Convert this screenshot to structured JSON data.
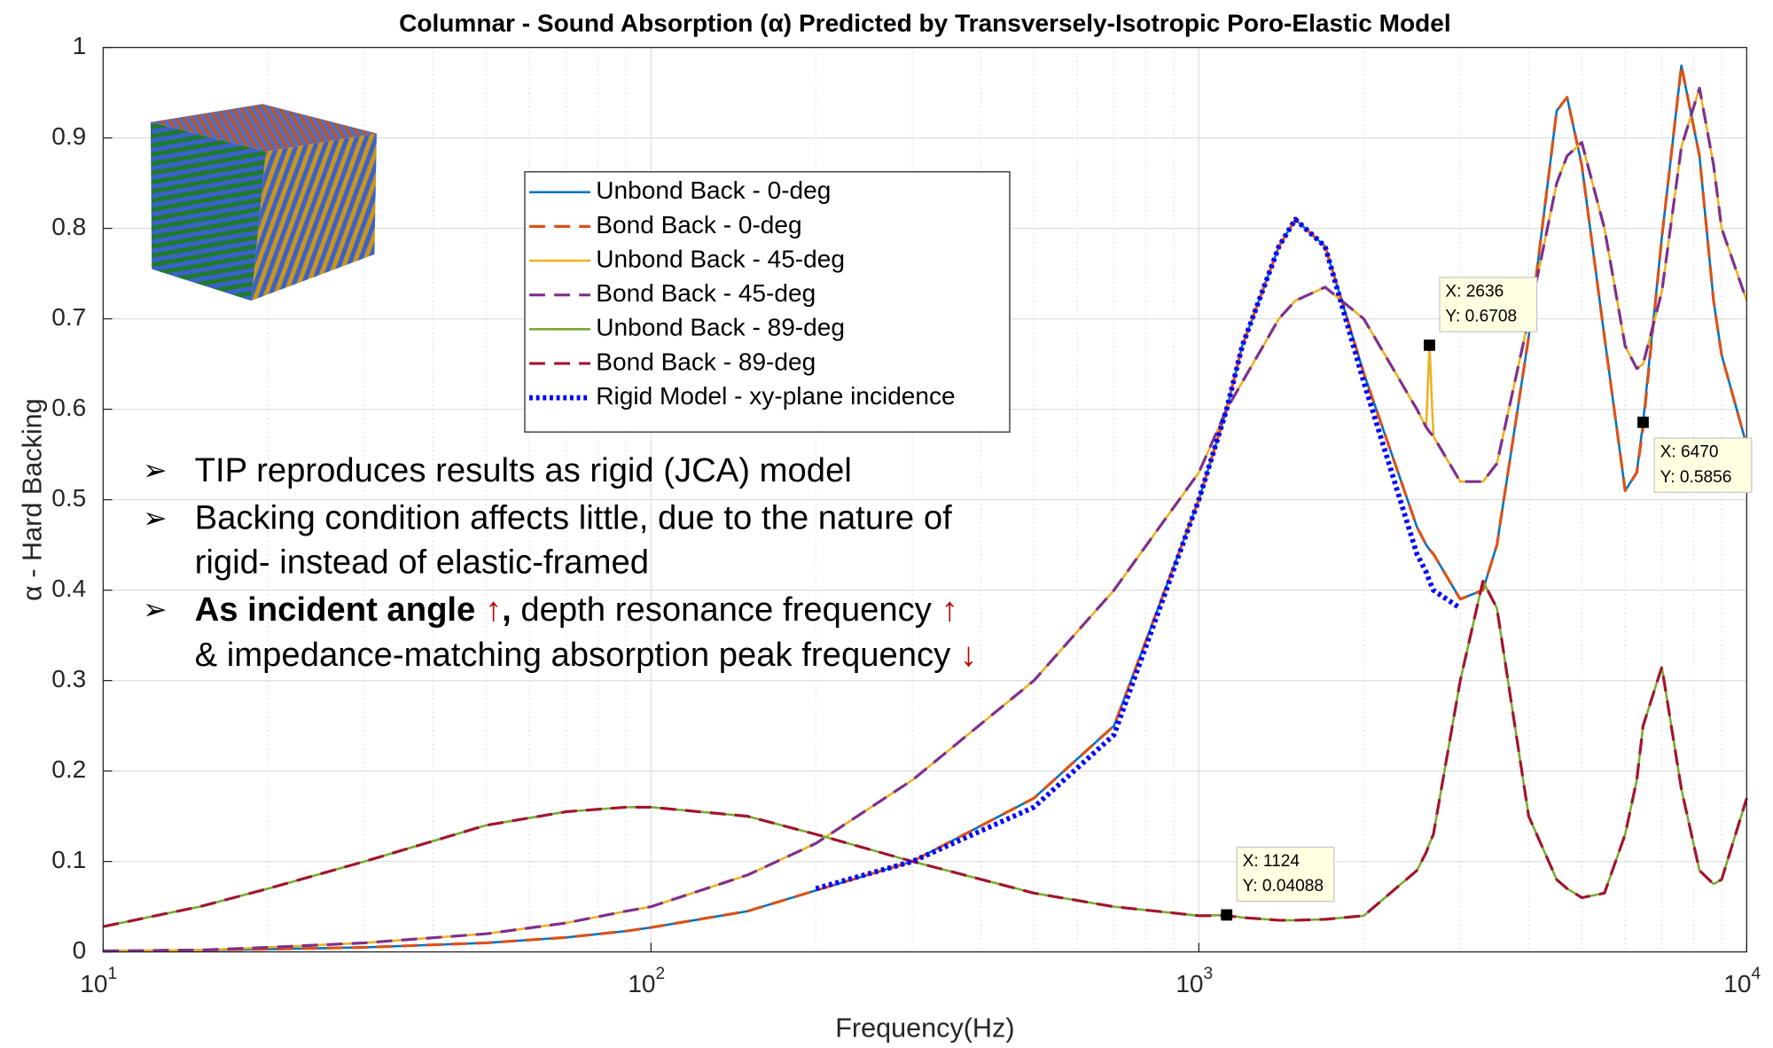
{
  "chart_data": {
    "type": "line",
    "title": "Columnar - Sound Absorption (α) Predicted by Transversely-Isotropic Poro-Elastic Model",
    "xlabel": "Frequency(Hz)",
    "ylabel": "α - Hard Backing",
    "xscale": "log",
    "grid": true,
    "minor_grid": true,
    "legend_loc": "upper center",
    "xlim": [
      10,
      10000
    ],
    "ylim": [
      0,
      1
    ],
    "xticks": [
      {
        "value": 10,
        "label": "10",
        "exponent": "1"
      },
      {
        "value": 100,
        "label": "10",
        "exponent": "2"
      },
      {
        "value": 1000,
        "label": "10",
        "exponent": "3"
      },
      {
        "value": 10000,
        "label": "10",
        "exponent": "4"
      }
    ],
    "yticks": [
      0,
      0.1,
      0.2,
      0.3,
      0.4,
      0.5,
      0.6,
      0.7,
      0.8,
      0.9,
      1
    ],
    "x": [
      10,
      15,
      20,
      30,
      50,
      70,
      90,
      100,
      150,
      200,
      300,
      500,
      700,
      1000,
      1124,
      1200,
      1400,
      1500,
      1700,
      2000,
      2500,
      2600,
      2636,
      2680,
      3000,
      3300,
      3500,
      4000,
      4500,
      4700,
      5000,
      5500,
      6000,
      6300,
      6470,
      7000,
      7600,
      8200,
      8700,
      9000,
      10000
    ],
    "series": [
      {
        "name": "Unbond Back - 0-deg",
        "color": "#0072bd",
        "linestyle": "solid",
        "values": [
          0.001,
          0.002,
          0.003,
          0.005,
          0.01,
          0.016,
          0.023,
          0.027,
          0.045,
          0.068,
          0.1,
          0.17,
          0.25,
          0.5,
          0.6,
          0.67,
          0.78,
          0.81,
          0.78,
          0.64,
          0.47,
          0.45,
          0.445,
          0.44,
          0.39,
          0.4,
          0.45,
          0.68,
          0.93,
          0.945,
          0.87,
          0.68,
          0.51,
          0.53,
          0.5856,
          0.79,
          0.98,
          0.88,
          0.72,
          0.66,
          0.56
        ]
      },
      {
        "name": "Bond Back - 0-deg",
        "color": "#d95319",
        "linestyle": "dashed",
        "values": [
          0.001,
          0.002,
          0.003,
          0.005,
          0.01,
          0.016,
          0.023,
          0.027,
          0.045,
          0.068,
          0.1,
          0.17,
          0.25,
          0.5,
          0.6,
          0.67,
          0.78,
          0.81,
          0.78,
          0.64,
          0.47,
          0.45,
          0.445,
          0.44,
          0.39,
          0.4,
          0.45,
          0.68,
          0.93,
          0.945,
          0.87,
          0.68,
          0.51,
          0.53,
          0.58,
          0.79,
          0.98,
          0.88,
          0.72,
          0.66,
          0.56
        ]
      },
      {
        "name": "Unbond Back - 45-deg",
        "color": "#edb120",
        "linestyle": "solid",
        "values": [
          0.001,
          0.002,
          0.005,
          0.01,
          0.02,
          0.032,
          0.045,
          0.05,
          0.085,
          0.12,
          0.19,
          0.3,
          0.4,
          0.53,
          0.6,
          0.63,
          0.7,
          0.72,
          0.735,
          0.7,
          0.6,
          0.58,
          0.6708,
          0.57,
          0.52,
          0.52,
          0.54,
          0.7,
          0.85,
          0.88,
          0.895,
          0.8,
          0.67,
          0.645,
          0.65,
          0.73,
          0.89,
          0.955,
          0.87,
          0.8,
          0.72
        ]
      },
      {
        "name": "Bond Back - 45-deg",
        "color": "#7e2f8e",
        "linestyle": "dashed",
        "values": [
          0.001,
          0.002,
          0.005,
          0.01,
          0.02,
          0.032,
          0.045,
          0.05,
          0.085,
          0.12,
          0.19,
          0.3,
          0.4,
          0.53,
          0.6,
          0.63,
          0.7,
          0.72,
          0.735,
          0.7,
          0.6,
          0.58,
          0.575,
          0.57,
          0.52,
          0.52,
          0.54,
          0.7,
          0.85,
          0.88,
          0.895,
          0.8,
          0.67,
          0.645,
          0.65,
          0.73,
          0.89,
          0.955,
          0.87,
          0.8,
          0.72
        ]
      },
      {
        "name": "Unbond Back - 89-deg",
        "color": "#77ac30",
        "linestyle": "solid",
        "values": [
          0.028,
          0.05,
          0.07,
          0.1,
          0.14,
          0.155,
          0.16,
          0.16,
          0.15,
          0.13,
          0.1,
          0.065,
          0.05,
          0.04,
          0.04088,
          0.038,
          0.035,
          0.035,
          0.036,
          0.04,
          0.09,
          0.11,
          0.12,
          0.13,
          0.3,
          0.41,
          0.38,
          0.15,
          0.08,
          0.07,
          0.06,
          0.065,
          0.13,
          0.19,
          0.25,
          0.315,
          0.18,
          0.09,
          0.075,
          0.08,
          0.17
        ]
      },
      {
        "name": "Bond Back - 89-deg",
        "color": "#a2142f",
        "linestyle": "dashed",
        "values": [
          0.028,
          0.05,
          0.07,
          0.1,
          0.14,
          0.155,
          0.16,
          0.16,
          0.15,
          0.13,
          0.1,
          0.065,
          0.05,
          0.04,
          0.04,
          0.038,
          0.035,
          0.035,
          0.036,
          0.04,
          0.09,
          0.11,
          0.12,
          0.13,
          0.3,
          0.41,
          0.38,
          0.15,
          0.08,
          0.07,
          0.06,
          0.065,
          0.13,
          0.19,
          0.25,
          0.315,
          0.18,
          0.09,
          0.075,
          0.08,
          0.17
        ]
      },
      {
        "name": "Rigid Model - xy-plane incidence",
        "color": "#0000ff",
        "linestyle": "dotted",
        "values": [
          null,
          null,
          null,
          null,
          null,
          null,
          null,
          null,
          null,
          0.07,
          0.1,
          0.16,
          0.24,
          0.5,
          0.6,
          0.67,
          0.78,
          0.81,
          0.78,
          0.63,
          0.44,
          0.42,
          0.41,
          0.4,
          0.38,
          null,
          null,
          null,
          null,
          null,
          null,
          null,
          null,
          null,
          null,
          null,
          null,
          null,
          null,
          null,
          null
        ]
      }
    ],
    "datatips": [
      {
        "x": 2636,
        "y": 0.6708,
        "text_x": "X: 2636",
        "text_y": "Y: 0.6708"
      },
      {
        "x": 6470,
        "y": 0.5856,
        "text_x": "X: 6470",
        "text_y": "Y: 0.5856"
      },
      {
        "x": 1124,
        "y": 0.04088,
        "text_x": "X: 1124",
        "text_y": "Y: 0.04088"
      }
    ],
    "notes": [
      [
        [
          {
            "text": "TIP reproduces results as rigid (JCA) model"
          }
        ]
      ],
      [
        [
          {
            "text": "Backing condition affects little, due to the nature of"
          }
        ],
        [
          {
            "text": "rigid- instead of elastic-framed"
          }
        ]
      ],
      [
        [
          {
            "text": "As incident angle ",
            "bold": true
          },
          {
            "text": "↑",
            "color": "#c00000"
          },
          {
            "text": ",",
            "bold": true
          },
          {
            "text": " depth resonance frequency "
          },
          {
            "text": "↑",
            "color": "#c00000"
          }
        ],
        [
          {
            "text": "& impedance-matching absorption peak frequency "
          },
          {
            "text": "↓",
            "color": "#c00000"
          }
        ]
      ]
    ]
  }
}
